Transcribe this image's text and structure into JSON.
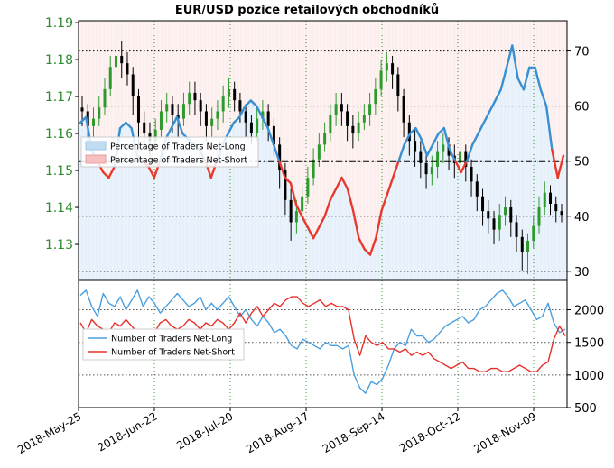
{
  "chart_data": [
    {
      "type": "line",
      "title": "EUR/USD pozice retailových obchodníků",
      "left_axis": {
        "ticks": [
          "1.13",
          "1.14",
          "1.15",
          "1.16",
          "1.17",
          "1.18",
          "1.19"
        ],
        "ylim": [
          1.1205,
          1.1905
        ],
        "color": "#2e8b2e"
      },
      "right_axis": {
        "ticks": [
          "30",
          "40",
          "50",
          "60",
          "70"
        ],
        "ylim": [
          28.5,
          75.5
        ]
      },
      "x_tick_labels": [
        "2018-May-25",
        "2018-Jun-22",
        "2018-Jul-20",
        "2018-Aug-17",
        "2018-Sep-14",
        "2018-Oct-12",
        "2018-Nov-09"
      ],
      "grid": true,
      "legend": {
        "position": "middle-left",
        "entries": [
          {
            "label": "Percentage of Traders Net-Long",
            "color": "#bfdcf2"
          },
          {
            "label": "Percentage of Traders Net-Short",
            "color": "#f7c0c0"
          }
        ]
      },
      "reference_line": 50,
      "percent_net_long": [
        57,
        58,
        52,
        50,
        48,
        47,
        49,
        56,
        57,
        56,
        51,
        50,
        49,
        47,
        50,
        54,
        56,
        58,
        55,
        54,
        53,
        52,
        50,
        47,
        50,
        53,
        55,
        57,
        58,
        60,
        61,
        60,
        58,
        56,
        53,
        50,
        47,
        46,
        42,
        40,
        38,
        36,
        38,
        40,
        43,
        45,
        47,
        45,
        41,
        36,
        34,
        33,
        36,
        41,
        44,
        47,
        50,
        53,
        55,
        56,
        54,
        51,
        53,
        55,
        56,
        52,
        50,
        48,
        50,
        53,
        55,
        57,
        59,
        61,
        63,
        67,
        71,
        65,
        63,
        67,
        67,
        63,
        60,
        52,
        47,
        51
      ],
      "candles": [
        {
          "o": 1.167,
          "c": 1.166,
          "h": 1.17,
          "l": 1.162
        },
        {
          "o": 1.166,
          "c": 1.162,
          "h": 1.168,
          "l": 1.158
        },
        {
          "o": 1.162,
          "c": 1.164,
          "h": 1.167,
          "l": 1.159
        },
        {
          "o": 1.164,
          "c": 1.167,
          "h": 1.17,
          "l": 1.162
        },
        {
          "o": 1.167,
          "c": 1.172,
          "h": 1.175,
          "l": 1.165
        },
        {
          "o": 1.172,
          "c": 1.178,
          "h": 1.181,
          "l": 1.17
        },
        {
          "o": 1.178,
          "c": 1.181,
          "h": 1.184,
          "l": 1.176
        },
        {
          "o": 1.181,
          "c": 1.179,
          "h": 1.185,
          "l": 1.175
        },
        {
          "o": 1.179,
          "c": 1.176,
          "h": 1.182,
          "l": 1.173
        },
        {
          "o": 1.176,
          "c": 1.17,
          "h": 1.178,
          "l": 1.165
        },
        {
          "o": 1.17,
          "c": 1.163,
          "h": 1.172,
          "l": 1.157
        },
        {
          "o": 1.163,
          "c": 1.16,
          "h": 1.166,
          "l": 1.156
        },
        {
          "o": 1.16,
          "c": 1.158,
          "h": 1.163,
          "l": 1.154
        },
        {
          "o": 1.158,
          "c": 1.161,
          "h": 1.164,
          "l": 1.156
        },
        {
          "o": 1.161,
          "c": 1.166,
          "h": 1.169,
          "l": 1.159
        },
        {
          "o": 1.166,
          "c": 1.168,
          "h": 1.171,
          "l": 1.163
        },
        {
          "o": 1.168,
          "c": 1.165,
          "h": 1.17,
          "l": 1.16
        },
        {
          "o": 1.165,
          "c": 1.164,
          "h": 1.168,
          "l": 1.159
        },
        {
          "o": 1.164,
          "c": 1.168,
          "h": 1.171,
          "l": 1.162
        },
        {
          "o": 1.168,
          "c": 1.171,
          "h": 1.174,
          "l": 1.165
        },
        {
          "o": 1.171,
          "c": 1.169,
          "h": 1.174,
          "l": 1.165
        },
        {
          "o": 1.169,
          "c": 1.166,
          "h": 1.171,
          "l": 1.162
        },
        {
          "o": 1.166,
          "c": 1.162,
          "h": 1.168,
          "l": 1.158
        },
        {
          "o": 1.162,
          "c": 1.164,
          "h": 1.167,
          "l": 1.159
        },
        {
          "o": 1.164,
          "c": 1.166,
          "h": 1.169,
          "l": 1.161
        },
        {
          "o": 1.166,
          "c": 1.17,
          "h": 1.173,
          "l": 1.163
        },
        {
          "o": 1.17,
          "c": 1.172,
          "h": 1.175,
          "l": 1.167
        },
        {
          "o": 1.172,
          "c": 1.169,
          "h": 1.174,
          "l": 1.166
        },
        {
          "o": 1.169,
          "c": 1.166,
          "h": 1.171,
          "l": 1.163
        },
        {
          "o": 1.166,
          "c": 1.163,
          "h": 1.168,
          "l": 1.159
        },
        {
          "o": 1.163,
          "c": 1.16,
          "h": 1.165,
          "l": 1.157
        },
        {
          "o": 1.16,
          "c": 1.164,
          "h": 1.167,
          "l": 1.158
        },
        {
          "o": 1.164,
          "c": 1.166,
          "h": 1.169,
          "l": 1.161
        },
        {
          "o": 1.166,
          "c": 1.162,
          "h": 1.168,
          "l": 1.158
        },
        {
          "o": 1.162,
          "c": 1.157,
          "h": 1.164,
          "l": 1.154
        },
        {
          "o": 1.157,
          "c": 1.15,
          "h": 1.159,
          "l": 1.145
        },
        {
          "o": 1.15,
          "c": 1.142,
          "h": 1.152,
          "l": 1.138
        },
        {
          "o": 1.142,
          "c": 1.136,
          "h": 1.145,
          "l": 1.131
        },
        {
          "o": 1.136,
          "c": 1.139,
          "h": 1.142,
          "l": 1.133
        },
        {
          "o": 1.139,
          "c": 1.143,
          "h": 1.146,
          "l": 1.136
        },
        {
          "o": 1.143,
          "c": 1.148,
          "h": 1.151,
          "l": 1.141
        },
        {
          "o": 1.148,
          "c": 1.153,
          "h": 1.156,
          "l": 1.146
        },
        {
          "o": 1.153,
          "c": 1.157,
          "h": 1.16,
          "l": 1.151
        },
        {
          "o": 1.157,
          "c": 1.16,
          "h": 1.163,
          "l": 1.155
        },
        {
          "o": 1.16,
          "c": 1.165,
          "h": 1.168,
          "l": 1.158
        },
        {
          "o": 1.165,
          "c": 1.168,
          "h": 1.171,
          "l": 1.162
        },
        {
          "o": 1.168,
          "c": 1.166,
          "h": 1.171,
          "l": 1.162
        },
        {
          "o": 1.166,
          "c": 1.162,
          "h": 1.168,
          "l": 1.158
        },
        {
          "o": 1.162,
          "c": 1.16,
          "h": 1.165,
          "l": 1.156
        },
        {
          "o": 1.16,
          "c": 1.163,
          "h": 1.166,
          "l": 1.158
        },
        {
          "o": 1.163,
          "c": 1.165,
          "h": 1.168,
          "l": 1.161
        },
        {
          "o": 1.165,
          "c": 1.168,
          "h": 1.171,
          "l": 1.162
        },
        {
          "o": 1.168,
          "c": 1.172,
          "h": 1.175,
          "l": 1.165
        },
        {
          "o": 1.172,
          "c": 1.177,
          "h": 1.18,
          "l": 1.17
        },
        {
          "o": 1.177,
          "c": 1.179,
          "h": 1.182,
          "l": 1.174
        },
        {
          "o": 1.179,
          "c": 1.176,
          "h": 1.181,
          "l": 1.172
        },
        {
          "o": 1.176,
          "c": 1.17,
          "h": 1.178,
          "l": 1.166
        },
        {
          "o": 1.17,
          "c": 1.163,
          "h": 1.172,
          "l": 1.159
        },
        {
          "o": 1.163,
          "c": 1.158,
          "h": 1.165,
          "l": 1.154
        },
        {
          "o": 1.158,
          "c": 1.155,
          "h": 1.161,
          "l": 1.151
        },
        {
          "o": 1.155,
          "c": 1.152,
          "h": 1.158,
          "l": 1.148
        },
        {
          "o": 1.152,
          "c": 1.149,
          "h": 1.155,
          "l": 1.145
        },
        {
          "o": 1.149,
          "c": 1.151,
          "h": 1.154,
          "l": 1.146
        },
        {
          "o": 1.151,
          "c": 1.155,
          "h": 1.158,
          "l": 1.148
        },
        {
          "o": 1.155,
          "c": 1.157,
          "h": 1.16,
          "l": 1.152
        },
        {
          "o": 1.157,
          "c": 1.154,
          "h": 1.159,
          "l": 1.15
        },
        {
          "o": 1.154,
          "c": 1.152,
          "h": 1.157,
          "l": 1.148
        },
        {
          "o": 1.152,
          "c": 1.155,
          "h": 1.158,
          "l": 1.149
        },
        {
          "o": 1.155,
          "c": 1.151,
          "h": 1.157,
          "l": 1.147
        },
        {
          "o": 1.151,
          "c": 1.147,
          "h": 1.153,
          "l": 1.143
        },
        {
          "o": 1.147,
          "c": 1.143,
          "h": 1.149,
          "l": 1.139
        },
        {
          "o": 1.143,
          "c": 1.139,
          "h": 1.145,
          "l": 1.135
        },
        {
          "o": 1.139,
          "c": 1.137,
          "h": 1.142,
          "l": 1.133
        },
        {
          "o": 1.137,
          "c": 1.134,
          "h": 1.139,
          "l": 1.13
        },
        {
          "o": 1.134,
          "c": 1.138,
          "h": 1.141,
          "l": 1.131
        },
        {
          "o": 1.138,
          "c": 1.14,
          "h": 1.143,
          "l": 1.135
        },
        {
          "o": 1.14,
          "c": 1.136,
          "h": 1.142,
          "l": 1.132
        },
        {
          "o": 1.136,
          "c": 1.132,
          "h": 1.138,
          "l": 1.128
        },
        {
          "o": 1.132,
          "c": 1.128,
          "h": 1.134,
          "l": 1.123
        },
        {
          "o": 1.128,
          "c": 1.131,
          "h": 1.133,
          "l": 1.122
        },
        {
          "o": 1.131,
          "c": 1.135,
          "h": 1.138,
          "l": 1.129
        },
        {
          "o": 1.135,
          "c": 1.14,
          "h": 1.143,
          "l": 1.133
        },
        {
          "o": 1.14,
          "c": 1.144,
          "h": 1.147,
          "l": 1.138
        },
        {
          "o": 1.144,
          "c": 1.141,
          "h": 1.146,
          "l": 1.138
        },
        {
          "o": 1.141,
          "c": 1.139,
          "h": 1.143,
          "l": 1.136
        },
        {
          "o": 1.139,
          "c": 1.138,
          "h": 1.141,
          "l": 1.136
        }
      ]
    },
    {
      "type": "line",
      "ylim": [
        500,
        2450
      ],
      "right_axis_ticks": [
        "500",
        "1000",
        "1500",
        "2000"
      ],
      "legend": {
        "position": "middle-left",
        "entries": [
          {
            "label": "Number of Traders Net-Long",
            "color": "#4a9fe0"
          },
          {
            "label": "Number of Traders Net-Short",
            "color": "#e8302a"
          }
        ]
      },
      "grid": true,
      "series": [
        {
          "name": "Number of Traders Net-Long",
          "color": "#4a9fe0",
          "values": [
            2220,
            2300,
            2050,
            1900,
            2250,
            2100,
            2050,
            2200,
            2000,
            2150,
            2300,
            2050,
            2200,
            2100,
            1950,
            2050,
            2150,
            2250,
            2150,
            2050,
            2100,
            2200,
            2000,
            2100,
            2000,
            2100,
            2200,
            2050,
            1900,
            2000,
            1850,
            1750,
            1900,
            1800,
            1650,
            1700,
            1600,
            1450,
            1400,
            1550,
            1500,
            1450,
            1400,
            1500,
            1450,
            1450,
            1400,
            1450,
            1000,
            800,
            720,
            900,
            850,
            950,
            1150,
            1400,
            1500,
            1450,
            1700,
            1600,
            1600,
            1500,
            1550,
            1650,
            1750,
            1800,
            1850,
            1900,
            1800,
            1850,
            2000,
            2050,
            2150,
            2250,
            2300,
            2200,
            2050,
            2100,
            2150,
            2000,
            1850,
            1900,
            2100,
            1800,
            1650,
            1700
          ]
        },
        {
          "name": "Number of Traders Net-Short",
          "color": "#e8302a",
          "values": [
            1800,
            1650,
            1850,
            1750,
            1700,
            1650,
            1800,
            1750,
            1850,
            1750,
            1650,
            1600,
            1700,
            1650,
            1800,
            1850,
            1750,
            1700,
            1750,
            1850,
            1800,
            1700,
            1800,
            1750,
            1850,
            1800,
            1700,
            1800,
            1950,
            1800,
            1950,
            2050,
            1900,
            2000,
            2100,
            2050,
            2150,
            2200,
            2200,
            2100,
            2050,
            2100,
            2150,
            2050,
            2100,
            2050,
            2050,
            2000,
            1550,
            1300,
            1600,
            1500,
            1450,
            1500,
            1400,
            1400,
            1350,
            1400,
            1300,
            1350,
            1300,
            1350,
            1250,
            1200,
            1150,
            1100,
            1150,
            1200,
            1100,
            1100,
            1050,
            1050,
            1100,
            1100,
            1050,
            1050,
            1100,
            1150,
            1100,
            1050,
            1050,
            1150,
            1200,
            1550,
            1750,
            1600
          ]
        }
      ]
    }
  ]
}
